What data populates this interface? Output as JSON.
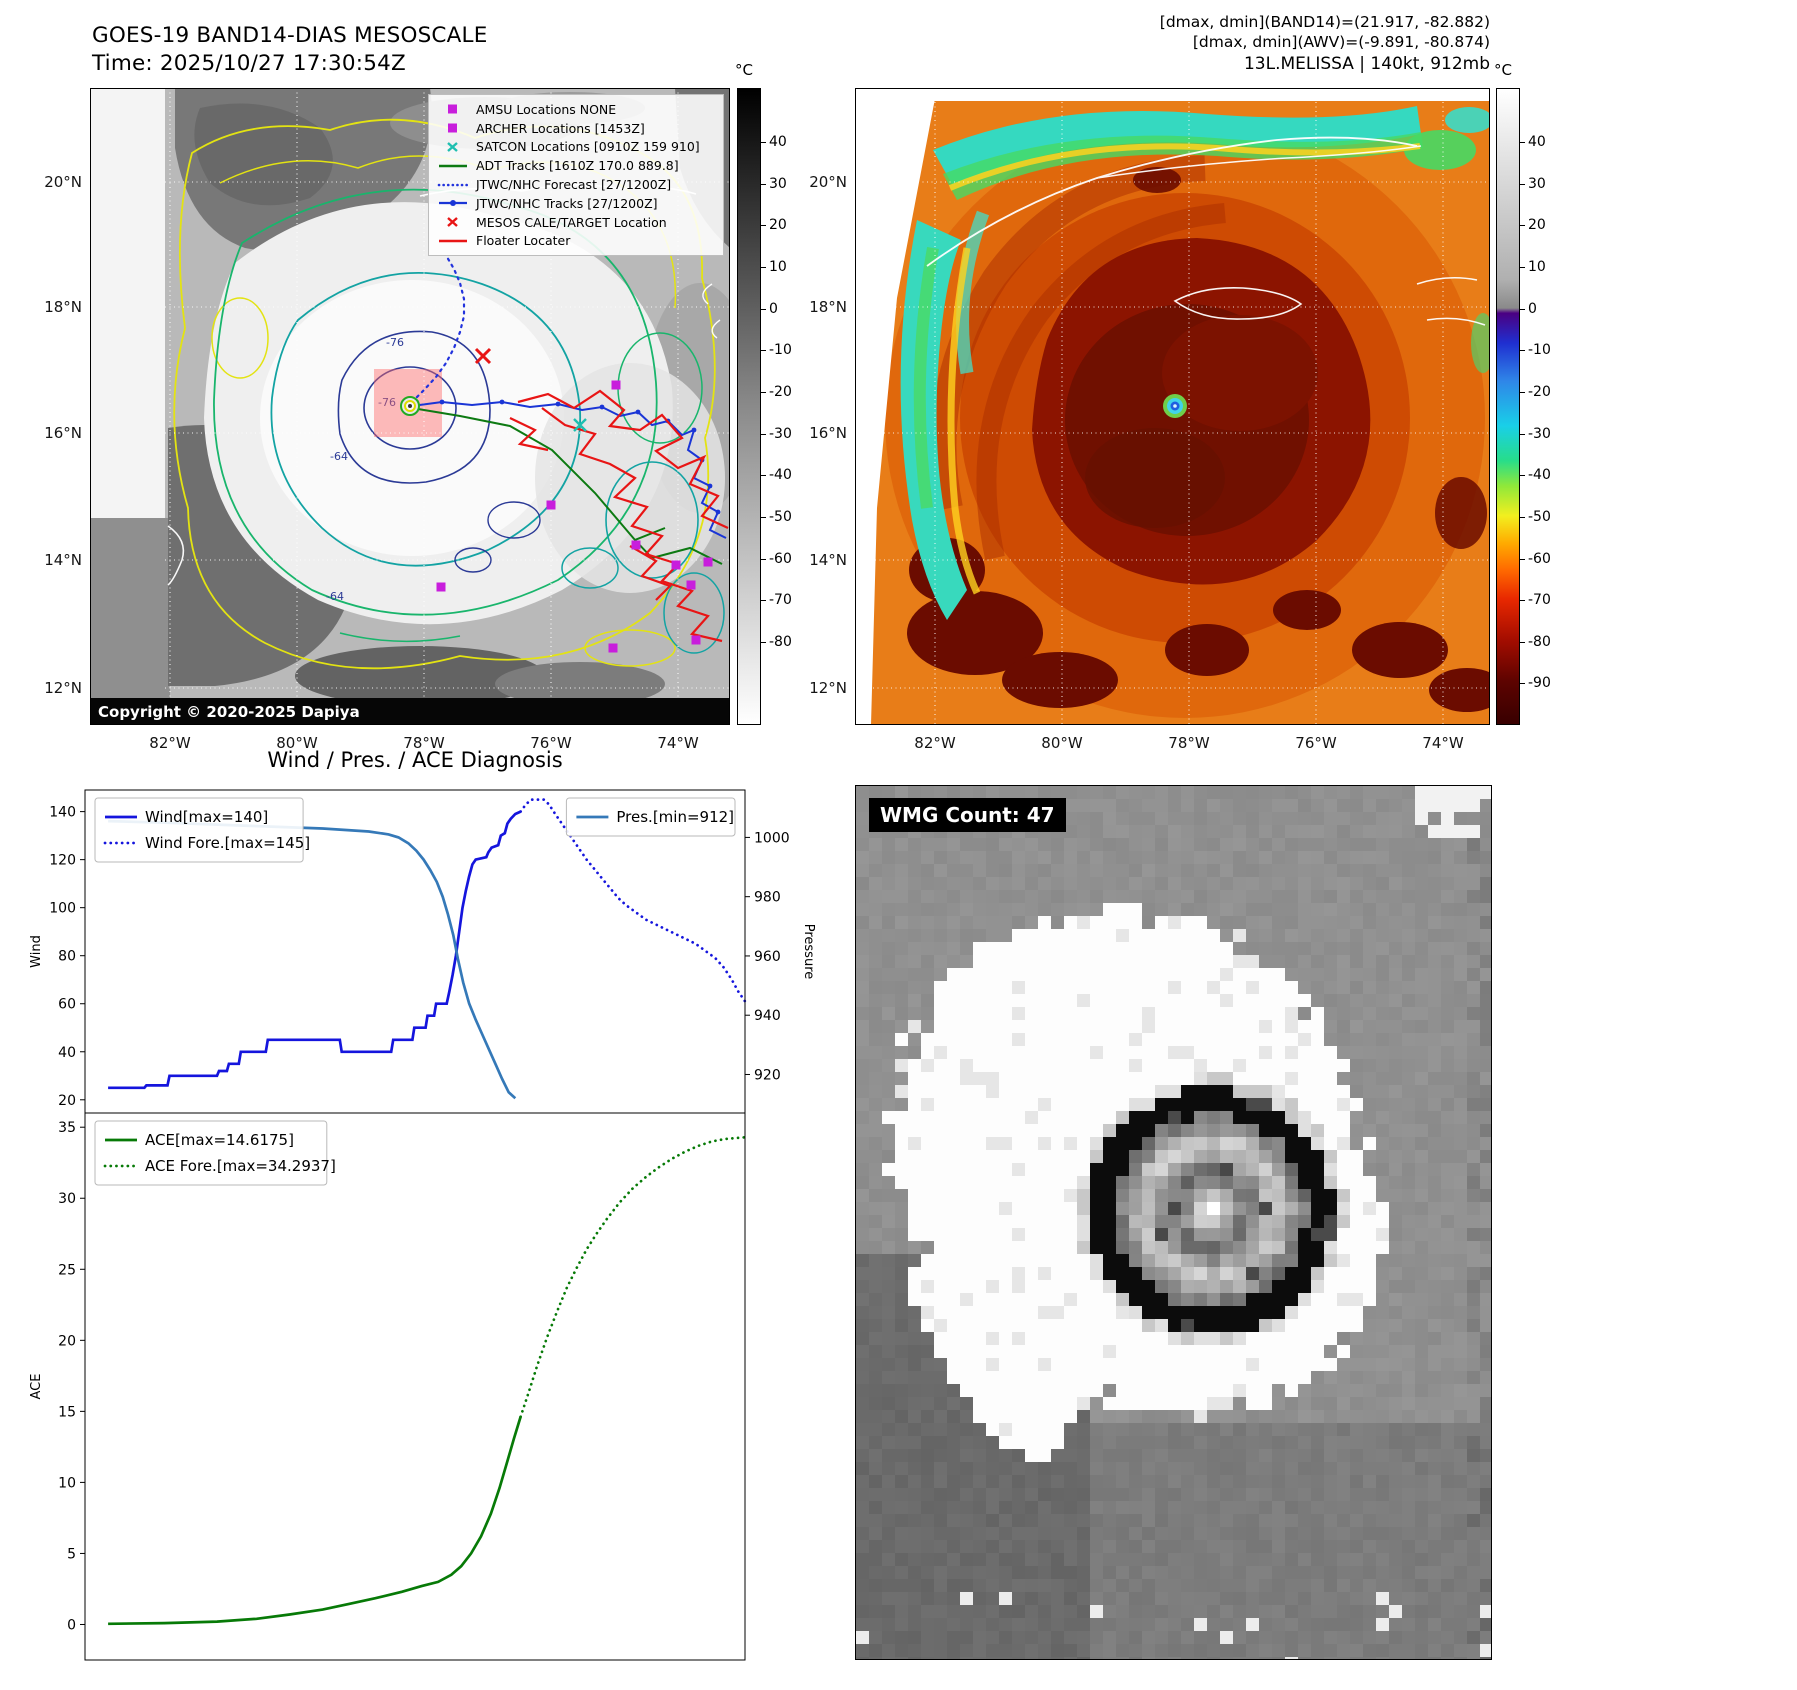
{
  "top_left": {
    "title": "GOES-19 BAND14-DIAS MESOSCALE",
    "time_line": "Time: 2025/10/27 17:30:54Z",
    "copyright": "Copyright © 2020-2025 Dapiya",
    "contour_labels": [
      "-76",
      "-76",
      "-64",
      "-64"
    ],
    "lat_labels": [
      "20°N",
      "18°N",
      "16°N",
      "14°N",
      "12°N"
    ],
    "lon_labels": [
      "82°W",
      "80°W",
      "78°W",
      "76°W",
      "74°W"
    ],
    "legend": [
      {
        "marker": "square",
        "color": "#c81edc",
        "label": "AMSU Locations NONE"
      },
      {
        "marker": "square",
        "color": "#c81edc",
        "label": "ARCHER Locations [1453Z]"
      },
      {
        "marker": "x",
        "color": "#1fbfb0",
        "label": "SATCON Locations [0910Z 159 910]"
      },
      {
        "marker": "line",
        "color": "#0d7a12",
        "label": "ADT Tracks [1610Z 170.0 889.8]"
      },
      {
        "marker": "dotted-line",
        "color": "#2233dd",
        "label": "JTWC/NHC Forecast [27/1200Z]"
      },
      {
        "marker": "line-dot",
        "color": "#1a35d6",
        "label": "JTWC/NHC Tracks [27/1200Z]"
      },
      {
        "marker": "x",
        "color": "#e81515",
        "label": "MESOS CALE/TARGET Location"
      },
      {
        "marker": "line",
        "color": "#e81515",
        "label": "Floater Locater"
      }
    ],
    "colorbar": {
      "unit": "°C",
      "ticks": [
        40,
        30,
        20,
        10,
        0,
        -10,
        -20,
        -30,
        -40,
        -50,
        -60,
        -70,
        -80
      ],
      "gradient": [
        [
          0,
          "#000000"
        ],
        [
          0.5,
          "#8a8a8a"
        ],
        [
          1,
          "#ffffff"
        ]
      ]
    }
  },
  "top_right": {
    "info_lines": [
      "[dmax, dmin](BAND14)=(21.917, -82.882)",
      "[dmax, dmin](AWV)=(-9.891, -80.874)",
      "13L.MELISSA | 140kt, 912mb"
    ],
    "lat_labels": [
      "20°N",
      "18°N",
      "16°N",
      "14°N",
      "12°N"
    ],
    "lon_labels": [
      "82°W",
      "80°W",
      "78°W",
      "76°W",
      "74°W"
    ],
    "colorbar": {
      "unit": "°C",
      "ticks": [
        40,
        30,
        20,
        10,
        0,
        -10,
        -20,
        -30,
        -40,
        -50,
        -60,
        -70,
        -80,
        -90
      ],
      "gradient": [
        [
          0,
          "#ffffff"
        ],
        [
          0.3,
          "#b0b0b0"
        ],
        [
          0.345,
          "#8a8a8a"
        ],
        [
          0.353,
          "#4b0082"
        ],
        [
          0.4,
          "#1f2fd0"
        ],
        [
          0.46,
          "#2f86e8"
        ],
        [
          0.53,
          "#19cfe8"
        ],
        [
          0.585,
          "#27dd8a"
        ],
        [
          0.625,
          "#8fe83a"
        ],
        [
          0.672,
          "#f2ef1f"
        ],
        [
          0.715,
          "#ffab00"
        ],
        [
          0.757,
          "#ff6a00"
        ],
        [
          0.803,
          "#e82800"
        ],
        [
          0.868,
          "#a30d00"
        ],
        [
          0.934,
          "#5c0300"
        ],
        [
          1,
          "#380000"
        ]
      ]
    }
  },
  "bottom_right": {
    "wmg_label": "WMG Count: 47"
  },
  "chart_data": [
    {
      "type": "line",
      "title": "Wind / Pres. / ACE Diagnosis",
      "ylabel": "Wind",
      "ylabel_right": "Pressure",
      "ylim": [
        14.5,
        149
      ],
      "yticks": [
        20,
        40,
        60,
        80,
        100,
        120,
        140
      ],
      "ylim_right": [
        907,
        1016
      ],
      "yticks_right": [
        920,
        940,
        960,
        980,
        1000
      ],
      "xlim": [
        0,
        100
      ],
      "grid": false,
      "series": [
        {
          "name": "Wind[max=140]",
          "axis": "left",
          "dash": "solid",
          "color": "#1515dd",
          "points": [
            [
              3.5,
              25
            ],
            [
              9,
              25
            ],
            [
              9.3,
              26
            ],
            [
              12.5,
              26
            ],
            [
              12.8,
              30
            ],
            [
              20,
              30
            ],
            [
              20.3,
              32
            ],
            [
              21.5,
              32
            ],
            [
              21.8,
              35
            ],
            [
              23.3,
              35
            ],
            [
              23.6,
              40
            ],
            [
              27.4,
              40
            ],
            [
              27.7,
              45
            ],
            [
              38.6,
              45
            ],
            [
              38.9,
              40
            ],
            [
              46.4,
              40
            ],
            [
              46.7,
              45
            ],
            [
              49.6,
              45
            ],
            [
              49.9,
              50
            ],
            [
              51.6,
              50
            ],
            [
              51.9,
              55
            ],
            [
              52.9,
              55
            ],
            [
              53.2,
              60
            ],
            [
              54.8,
              60
            ],
            [
              55.2,
              65
            ],
            [
              55.7,
              72
            ],
            [
              56.2,
              80
            ],
            [
              56.7,
              90
            ],
            [
              57.2,
              100
            ],
            [
              57.7,
              107
            ],
            [
              58.2,
              113
            ],
            [
              58.7,
              118
            ],
            [
              59.2,
              120
            ],
            [
              60.8,
              121
            ],
            [
              61.1,
              123
            ],
            [
              61.6,
              125
            ],
            [
              62.6,
              126
            ],
            [
              63,
              130
            ],
            [
              63.6,
              131
            ],
            [
              64,
              135
            ],
            [
              64.5,
              137
            ],
            [
              65.2,
              139
            ],
            [
              66,
              140
            ]
          ]
        },
        {
          "name": "Wind Fore.[max=145]",
          "axis": "left",
          "dash": "dotted",
          "color": "#1515dd",
          "points": [
            [
              66,
              140
            ],
            [
              66.8,
              143
            ],
            [
              67.6,
              145
            ],
            [
              69.5,
              145
            ],
            [
              70.3,
              143
            ],
            [
              71,
              140
            ],
            [
              72,
              136
            ],
            [
              73,
              132
            ],
            [
              74,
              128
            ],
            [
              75,
              124
            ],
            [
              76,
              120
            ],
            [
              77.2,
              116
            ],
            [
              78.4,
              112
            ],
            [
              79.6,
              108
            ],
            [
              80.8,
              104
            ],
            [
              82,
              101
            ],
            [
              83.5,
              98
            ],
            [
              85,
              95
            ],
            [
              86.5,
              93
            ],
            [
              88,
              91
            ],
            [
              89.5,
              89
            ],
            [
              91,
              87
            ],
            [
              92.5,
              85
            ],
            [
              94,
              82
            ],
            [
              95.5,
              79
            ],
            [
              96.8,
              75
            ],
            [
              98,
              70
            ],
            [
              99,
              65
            ],
            [
              100,
              61
            ]
          ]
        },
        {
          "name": "Pres.[min=912]",
          "axis": "right",
          "dash": "solid",
          "color": "#3579b8",
          "points": [
            [
              3.5,
              1005.5
            ],
            [
              12,
              1005
            ],
            [
              24,
              1004
            ],
            [
              36,
              1003
            ],
            [
              43,
              1002
            ],
            [
              46,
              1001
            ],
            [
              47.5,
              1000
            ],
            [
              49,
              998
            ],
            [
              50.2,
              995.5
            ],
            [
              51.3,
              992.5
            ],
            [
              52.3,
              989
            ],
            [
              53.3,
              985
            ],
            [
              54.2,
              980
            ],
            [
              55,
              974
            ],
            [
              55.8,
              967
            ],
            [
              56.5,
              959
            ],
            [
              57.3,
              951
            ],
            [
              58.2,
              944
            ],
            [
              59.2,
              938.5
            ],
            [
              60.2,
              933.5
            ],
            [
              61.2,
              928.5
            ],
            [
              62.2,
              923.5
            ],
            [
              63.2,
              918.5
            ],
            [
              64.2,
              914
            ],
            [
              65.2,
              912
            ]
          ]
        }
      ],
      "legend_groups": [
        {
          "anchor": "left",
          "series": [
            0,
            1
          ]
        },
        {
          "anchor": "right",
          "series": [
            2
          ]
        }
      ]
    },
    {
      "type": "line",
      "ylabel": "ACE",
      "ylim": [
        -2.5,
        36
      ],
      "yticks": [
        0,
        5,
        10,
        15,
        20,
        25,
        30,
        35
      ],
      "xlim": [
        0,
        100
      ],
      "grid": false,
      "series": [
        {
          "name": "ACE[max=14.6175]",
          "axis": "left",
          "dash": "solid",
          "color": "#077a07",
          "points": [
            [
              3.5,
              0.05
            ],
            [
              12,
              0.1
            ],
            [
              20,
              0.2
            ],
            [
              26,
              0.4
            ],
            [
              31,
              0.7
            ],
            [
              36,
              1.05
            ],
            [
              40,
              1.45
            ],
            [
              44,
              1.85
            ],
            [
              48,
              2.3
            ],
            [
              51,
              2.7
            ],
            [
              53.5,
              3.0
            ],
            [
              55.5,
              3.5
            ],
            [
              57,
              4.1
            ],
            [
              58.5,
              5.0
            ],
            [
              60,
              6.2
            ],
            [
              61.5,
              7.8
            ],
            [
              62.8,
              9.6
            ],
            [
              64,
              11.5
            ],
            [
              65,
              13.1
            ],
            [
              66,
              14.62
            ]
          ]
        },
        {
          "name": "ACE Fore.[max=34.2937]",
          "axis": "left",
          "dash": "dotted",
          "color": "#077a07",
          "points": [
            [
              66,
              14.62
            ],
            [
              67.2,
              16.3
            ],
            [
              68.5,
              18.2
            ],
            [
              70,
              20.2
            ],
            [
              71.5,
              22
            ],
            [
              73,
              23.7
            ],
            [
              74.5,
              25.1
            ],
            [
              76,
              26.4
            ],
            [
              77.5,
              27.5
            ],
            [
              79,
              28.5
            ],
            [
              81,
              29.7
            ],
            [
              83,
              30.7
            ],
            [
              85,
              31.5
            ],
            [
              87,
              32.2
            ],
            [
              89,
              32.8
            ],
            [
              91,
              33.3
            ],
            [
              93,
              33.7
            ],
            [
              95,
              34
            ],
            [
              97,
              34.17
            ],
            [
              100,
              34.29
            ]
          ]
        }
      ],
      "legend_groups": [
        {
          "anchor": "left",
          "series": [
            0,
            1
          ]
        }
      ]
    }
  ]
}
